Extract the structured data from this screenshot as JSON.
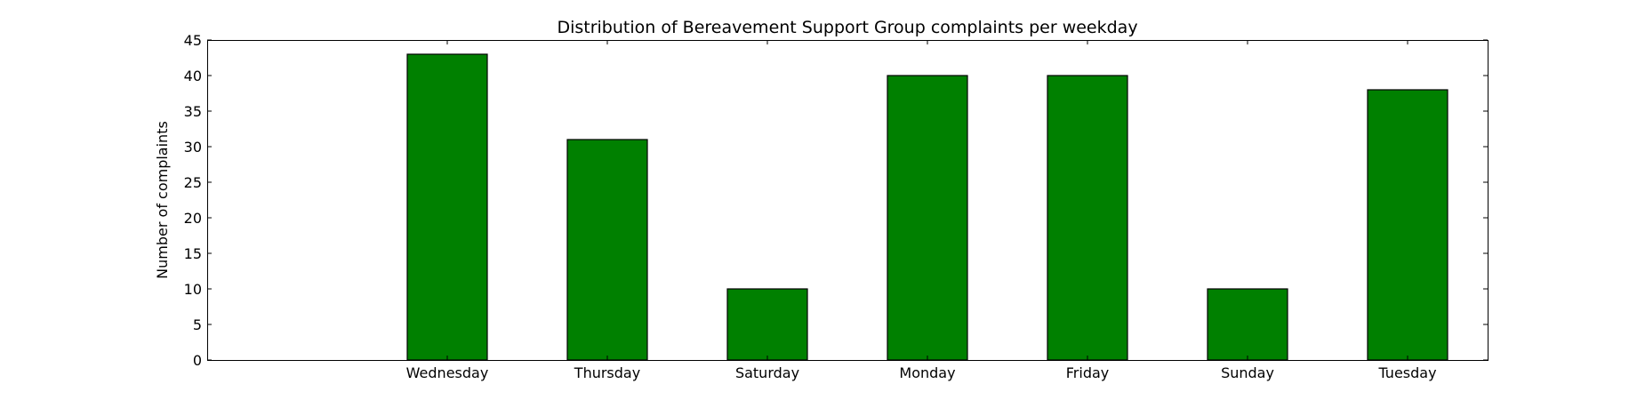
{
  "chart_data": {
    "type": "bar",
    "title": "Distribution of  Bereavement Support Group complaints per weekday",
    "xlabel": "",
    "ylabel": "Number of complaints",
    "categories": [
      "Wednesday",
      "Thursday",
      "Saturday",
      "Monday",
      "Friday",
      "Sunday",
      "Tuesday"
    ],
    "values": [
      43,
      31,
      10,
      40,
      40,
      10,
      38
    ],
    "ylim": [
      0,
      45
    ],
    "yticks": [
      0,
      5,
      10,
      15,
      20,
      25,
      30,
      35,
      40,
      45
    ],
    "bar_color": "#008000",
    "edge_color": "#000000",
    "grid": false,
    "legend": "none"
  }
}
